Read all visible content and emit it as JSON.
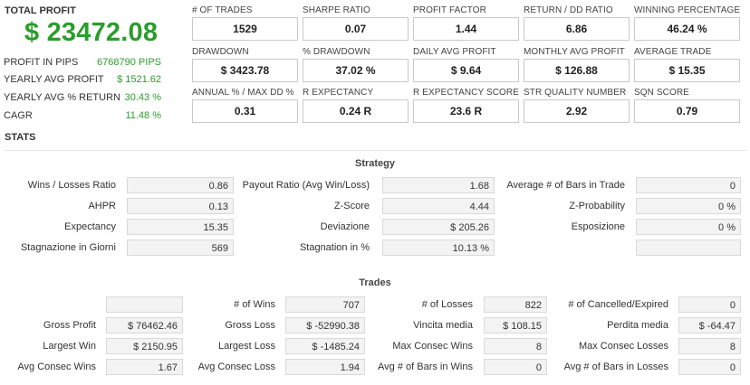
{
  "summary": {
    "total_profit_label": "TOTAL PROFIT",
    "total_profit_value": "$ 23472.08",
    "rows": [
      {
        "label": "PROFIT IN PIPS",
        "value": "6768790 PIPS"
      },
      {
        "label": "YEARLY AVG PROFIT",
        "value": "$ 1521.62"
      },
      {
        "label": "YEARLY AVG % RETURN",
        "value": "30.43 %"
      },
      {
        "label": "CAGR",
        "value": "11.48 %"
      }
    ]
  },
  "cards": [
    {
      "label": "# OF TRADES",
      "value": "1529"
    },
    {
      "label": "SHARPE RATIO",
      "value": "0.07"
    },
    {
      "label": "PROFIT FACTOR",
      "value": "1.44"
    },
    {
      "label": "RETURN / DD RATIO",
      "value": "6.86"
    },
    {
      "label": "WINNING PERCENTAGE",
      "value": "46.24 %"
    },
    {
      "label": "DRAWDOWN",
      "value": "$ 3423.78"
    },
    {
      "label": "% DRAWDOWN",
      "value": "37.02 %"
    },
    {
      "label": "DAILY AVG PROFIT",
      "value": "$ 9.64"
    },
    {
      "label": "MONTHLY AVG PROFIT",
      "value": "$ 126.88"
    },
    {
      "label": "AVERAGE TRADE",
      "value": "$ 15.35"
    },
    {
      "label": "ANNUAL % / MAX DD %",
      "value": "0.31"
    },
    {
      "label": "R EXPECTANCY",
      "value": "0.24 R"
    },
    {
      "label": "R EXPECTANCY SCORE",
      "value": "23.6 R"
    },
    {
      "label": "STR QUALITY NUMBER",
      "value": "2.92"
    },
    {
      "label": "SQN SCORE",
      "value": "0.79"
    }
  ],
  "stats_heading": "STATS",
  "strategy": {
    "title": "Strategy",
    "rows": [
      [
        {
          "label": "Wins / Losses Ratio",
          "value": "0.86"
        },
        {
          "label": "Payout Ratio (Avg Win/Loss)",
          "value": "1.68"
        },
        {
          "label": "Average # of Bars in Trade",
          "value": "0"
        }
      ],
      [
        {
          "label": "AHPR",
          "value": "0.13"
        },
        {
          "label": "Z-Score",
          "value": "4.44"
        },
        {
          "label": "Z-Probability",
          "value": "0 %"
        }
      ],
      [
        {
          "label": "Expectancy",
          "value": "15.35"
        },
        {
          "label": "Deviazione",
          "value": "$ 205.26"
        },
        {
          "label": "Esposizione",
          "value": "0 %"
        }
      ],
      [
        {
          "label": "Stagnazione in Giorni",
          "value": "569"
        },
        {
          "label": "Stagnation in %",
          "value": "10.13 %"
        },
        {
          "label": "",
          "value": ""
        }
      ]
    ]
  },
  "trades": {
    "title": "Trades",
    "rows": [
      [
        {
          "label": "",
          "value": ""
        },
        {
          "label": "# of Wins",
          "value": "707"
        },
        {
          "label": "# of Losses",
          "value": "822"
        },
        {
          "label": "# of Cancelled/Expired",
          "value": "0"
        }
      ],
      [
        {
          "label": "Gross Profit",
          "value": "$ 76462.46"
        },
        {
          "label": "Gross Loss",
          "value": "$ -52990.38"
        },
        {
          "label": "Vincita media",
          "value": "$ 108.15"
        },
        {
          "label": "Perdita media",
          "value": "$ -64.47"
        }
      ],
      [
        {
          "label": "Largest Win",
          "value": "$ 2150.95"
        },
        {
          "label": "Largest Loss",
          "value": "$ -1485.24"
        },
        {
          "label": "Max Consec Wins",
          "value": "8"
        },
        {
          "label": "Max Consec Losses",
          "value": "8"
        }
      ],
      [
        {
          "label": "Avg Consec Wins",
          "value": "1.67"
        },
        {
          "label": "Avg Consec Loss",
          "value": "1.94"
        },
        {
          "label": "Avg # of Bars in Wins",
          "value": "0"
        },
        {
          "label": "Avg # of Bars in Losses",
          "value": "0"
        }
      ]
    ]
  }
}
